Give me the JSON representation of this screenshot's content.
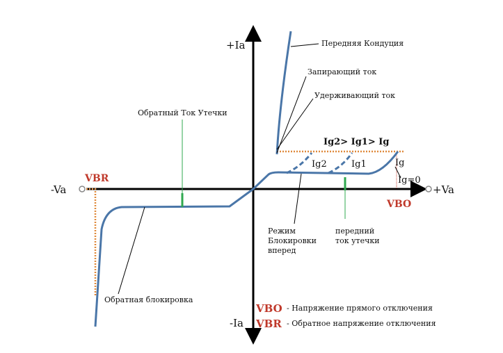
{
  "axes": {
    "plus_ia": "+Ia",
    "minus_ia": "-Ia",
    "plus_va": "+Va",
    "minus_va": "-Va"
  },
  "labels": {
    "forward_conduction": "Передняя Кондуция",
    "latching_current": "Запирающий ток",
    "holding_current": "Удерживающий ток",
    "reverse_leakage": "Обратный Ток Утечки",
    "gate_relation": "Ig2> Ig1> Ig",
    "ig2": "Ig2",
    "ig1": "Ig1",
    "ig": "Ig",
    "ig0": "Ig=0",
    "vbr": "VBR",
    "vbo": "VBO",
    "forward_blocking_1": "Режим",
    "forward_blocking_2": "Блокировки",
    "forward_blocking_3": "вперед",
    "forward_leakage_1": "передний",
    "forward_leakage_2": "ток утечки",
    "reverse_blocking": "Обратная блокировка"
  },
  "legend": [
    {
      "symbol": "VBO",
      "text": "- Напряжение прямого отключения"
    },
    {
      "symbol": "VBR",
      "text": "- Обратное напряжение отключения"
    }
  ],
  "colors": {
    "curve": "#4a76a8",
    "axis": "#000000",
    "guide": "#e08a3c",
    "leakage": "#2fa84f",
    "accent": "#c0392b"
  }
}
